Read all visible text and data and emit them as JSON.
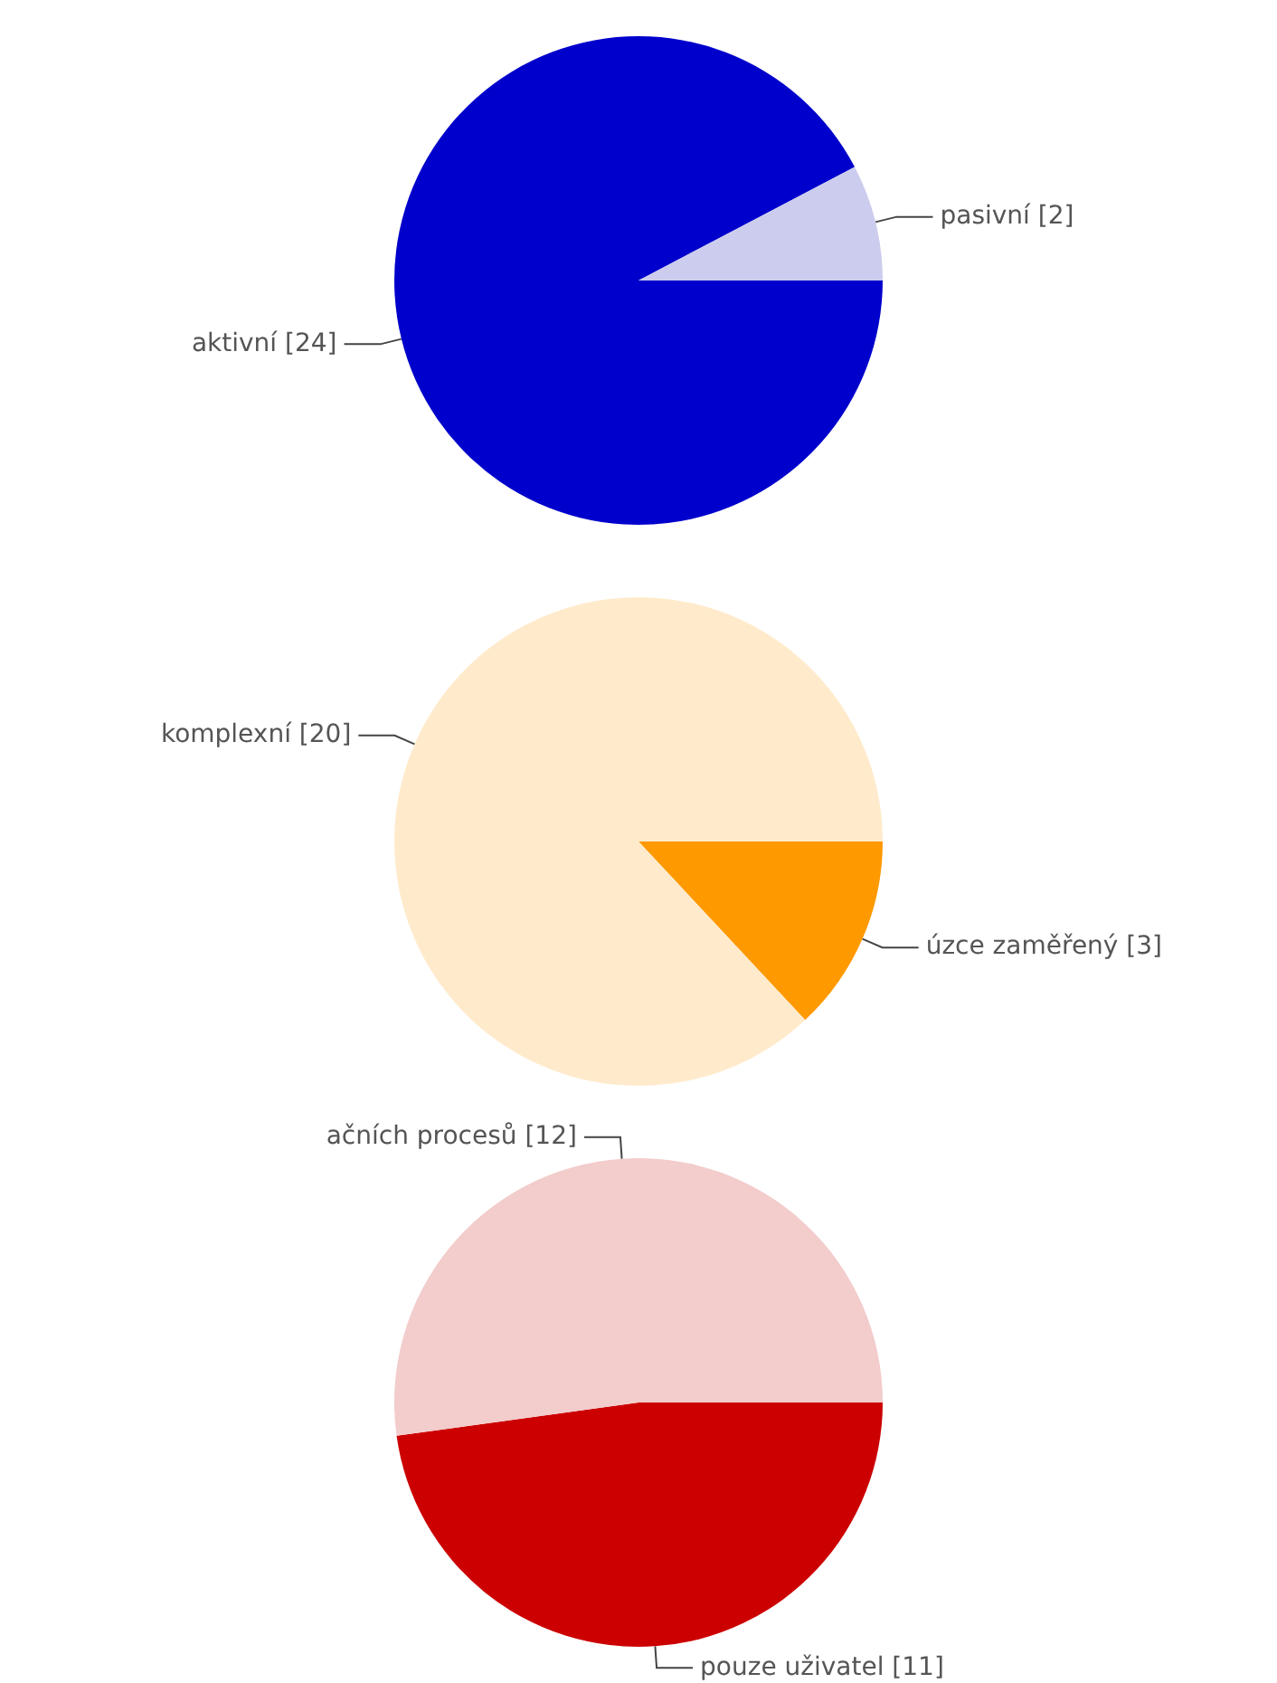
{
  "chart_data": [
    {
      "type": "pie",
      "categories": [
        "aktivní [24]",
        "pasivní [2]"
      ],
      "values": [
        24,
        2
      ],
      "colors": [
        "#0000cc",
        "#ccccee"
      ],
      "legend": false
    },
    {
      "type": "pie",
      "categories": [
        "úzce zaměřený [3]",
        "komplexní [20]"
      ],
      "values": [
        3,
        20
      ],
      "colors": [
        "#ff9900",
        "#ffebcc"
      ],
      "legend": false
    },
    {
      "type": "pie",
      "categories": [
        "pouze uživatel [11]",
        "ačních procesů [12]"
      ],
      "values": [
        11,
        12
      ],
      "colors": [
        "#cc0000",
        "#f3cccc"
      ],
      "legend": false
    }
  ]
}
